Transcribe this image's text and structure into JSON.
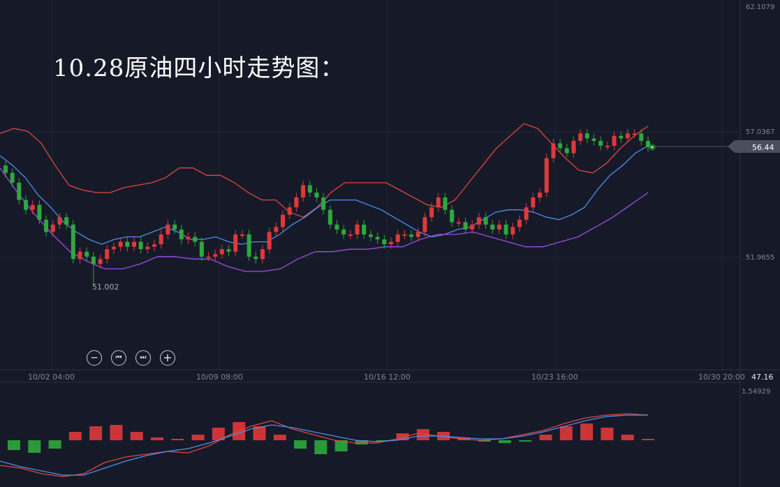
{
  "title": "10.28原油四小时走势图：",
  "controls": [
    {
      "name": "zoom-out-button",
      "icon": "minus-icon",
      "glyph": "−"
    },
    {
      "name": "first-button",
      "icon": "skip-back-icon",
      "glyph": "⏮"
    },
    {
      "name": "last-button",
      "icon": "skip-forward-icon",
      "glyph": "⏭"
    },
    {
      "name": "zoom-in-button",
      "icon": "plus-icon",
      "glyph": "+"
    }
  ],
  "chart_data": {
    "type": "candlestick",
    "price_axis_labels": [
      "62.1079",
      "57.0367",
      "51.9655",
      "47.16"
    ],
    "current_price_label": "56.44",
    "low_marker_label": "51.002",
    "time_axis_labels": [
      "10/02 04:00",
      "10/09 08:00",
      "10/16 12:00",
      "10/23 16:00",
      "10/30 20:00"
    ],
    "indicator_axis_label": "1.54929",
    "ylim": [
      47.16,
      62.1079
    ],
    "up_color": "#e0393a",
    "down_color": "#2ea83d",
    "close": [
      55.4,
      55.0,
      54.3,
      53.9,
      54.1,
      53.5,
      53.0,
      53.3,
      53.6,
      53.3,
      51.9,
      52.2,
      52.0,
      51.7,
      51.9,
      52.3,
      52.4,
      52.6,
      52.4,
      52.6,
      52.3,
      52.4,
      52.5,
      52.9,
      53.3,
      53.1,
      52.7,
      52.8,
      52.6,
      52.0,
      52.0,
      52.1,
      52.3,
      52.2,
      52.9,
      52.9,
      52.0,
      51.9,
      52.3,
      53.0,
      53.2,
      53.7,
      54.0,
      54.4,
      54.9,
      54.6,
      54.4,
      53.9,
      53.3,
      53.1,
      52.9,
      52.9,
      53.3,
      52.9,
      52.8,
      52.7,
      52.5,
      52.6,
      52.9,
      52.9,
      52.8,
      53.0,
      53.6,
      54.0,
      54.4,
      53.9,
      53.4,
      53.4,
      53.1,
      53.3,
      53.6,
      53.3,
      53.1,
      53.3,
      52.9,
      53.2,
      53.5,
      54.0,
      54.4,
      54.6,
      56.0,
      56.6,
      56.4,
      56.2,
      56.7,
      57.0,
      56.8,
      56.7,
      56.5,
      56.5,
      56.9,
      56.8,
      57.0,
      57.0,
      56.7,
      56.44
    ],
    "upper_band": [
      57.0,
      57.2,
      57.1,
      56.6,
      55.7,
      54.9,
      54.7,
      54.6,
      54.6,
      54.8,
      54.9,
      55.0,
      55.2,
      55.6,
      55.6,
      55.3,
      55.3,
      55.0,
      54.6,
      54.3,
      54.3,
      53.8,
      53.6,
      54.0,
      54.6,
      55.0,
      55.0,
      55.0,
      55.0,
      54.7,
      54.4,
      54.1,
      54.0,
      54.3,
      55.0,
      55.7,
      56.4,
      56.9,
      57.4,
      57.2,
      56.6,
      56.0,
      55.5,
      55.4,
      55.8,
      56.4,
      56.9,
      57.3
    ],
    "middle_band": [
      56.1,
      55.7,
      55.2,
      54.5,
      54.0,
      53.4,
      53.0,
      52.7,
      52.5,
      52.7,
      52.8,
      52.8,
      53.0,
      53.2,
      53.0,
      52.7,
      52.7,
      52.8,
      52.6,
      52.5,
      52.6,
      52.6,
      52.9,
      53.3,
      53.6,
      54.0,
      54.3,
      54.3,
      54.3,
      54.1,
      53.9,
      53.6,
      53.3,
      53.0,
      52.8,
      52.9,
      53.1,
      53.2,
      53.5,
      53.8,
      53.9,
      53.9,
      53.8,
      53.6,
      53.5,
      53.7,
      54.0,
      54.7,
      55.3,
      55.7,
      56.2,
      56.5
    ],
    "lower_band": [
      55.6,
      54.6,
      53.7,
      52.9,
      52.2,
      51.8,
      51.5,
      51.5,
      51.7,
      52.0,
      52.0,
      51.9,
      51.9,
      51.6,
      51.4,
      51.4,
      51.5,
      51.9,
      52.2,
      52.2,
      52.3,
      52.3,
      52.4,
      52.4,
      52.7,
      52.9,
      52.9,
      53.0,
      52.8,
      52.6,
      52.4,
      52.4,
      52.6,
      52.8,
      53.2,
      53.6,
      54.1,
      54.6
    ]
  },
  "macd_data": {
    "histogram": [
      -0.35,
      -0.45,
      -0.3,
      0.3,
      0.5,
      0.55,
      0.3,
      0.1,
      0.05,
      0.2,
      0.45,
      0.65,
      0.5,
      0.2,
      -0.3,
      -0.5,
      -0.4,
      -0.15,
      -0.05,
      0.25,
      0.4,
      0.3,
      0.1,
      -0.05,
      -0.1,
      -0.05,
      0.2,
      0.5,
      0.6,
      0.45,
      0.2,
      0.05
    ],
    "macd_line": [
      -0.9,
      -1.0,
      -1.2,
      -1.3,
      -1.2,
      -0.8,
      -0.6,
      -0.5,
      -0.4,
      -0.45,
      -0.2,
      0.2,
      0.5,
      0.7,
      0.4,
      0.2,
      0.0,
      -0.1,
      -0.1,
      0.05,
      0.25,
      0.15,
      0.05,
      0.0,
      0.05,
      0.2,
      0.35,
      0.6,
      0.8,
      0.9,
      0.95,
      0.9
    ],
    "signal_line": [
      -0.75,
      -0.95,
      -1.1,
      -1.25,
      -1.25,
      -1.0,
      -0.75,
      -0.55,
      -0.4,
      -0.3,
      -0.1,
      0.15,
      0.4,
      0.55,
      0.45,
      0.3,
      0.15,
      0.0,
      -0.05,
      0.0,
      0.15,
      0.15,
      0.1,
      0.05,
      0.05,
      0.15,
      0.3,
      0.5,
      0.7,
      0.85,
      0.9,
      0.9
    ]
  }
}
